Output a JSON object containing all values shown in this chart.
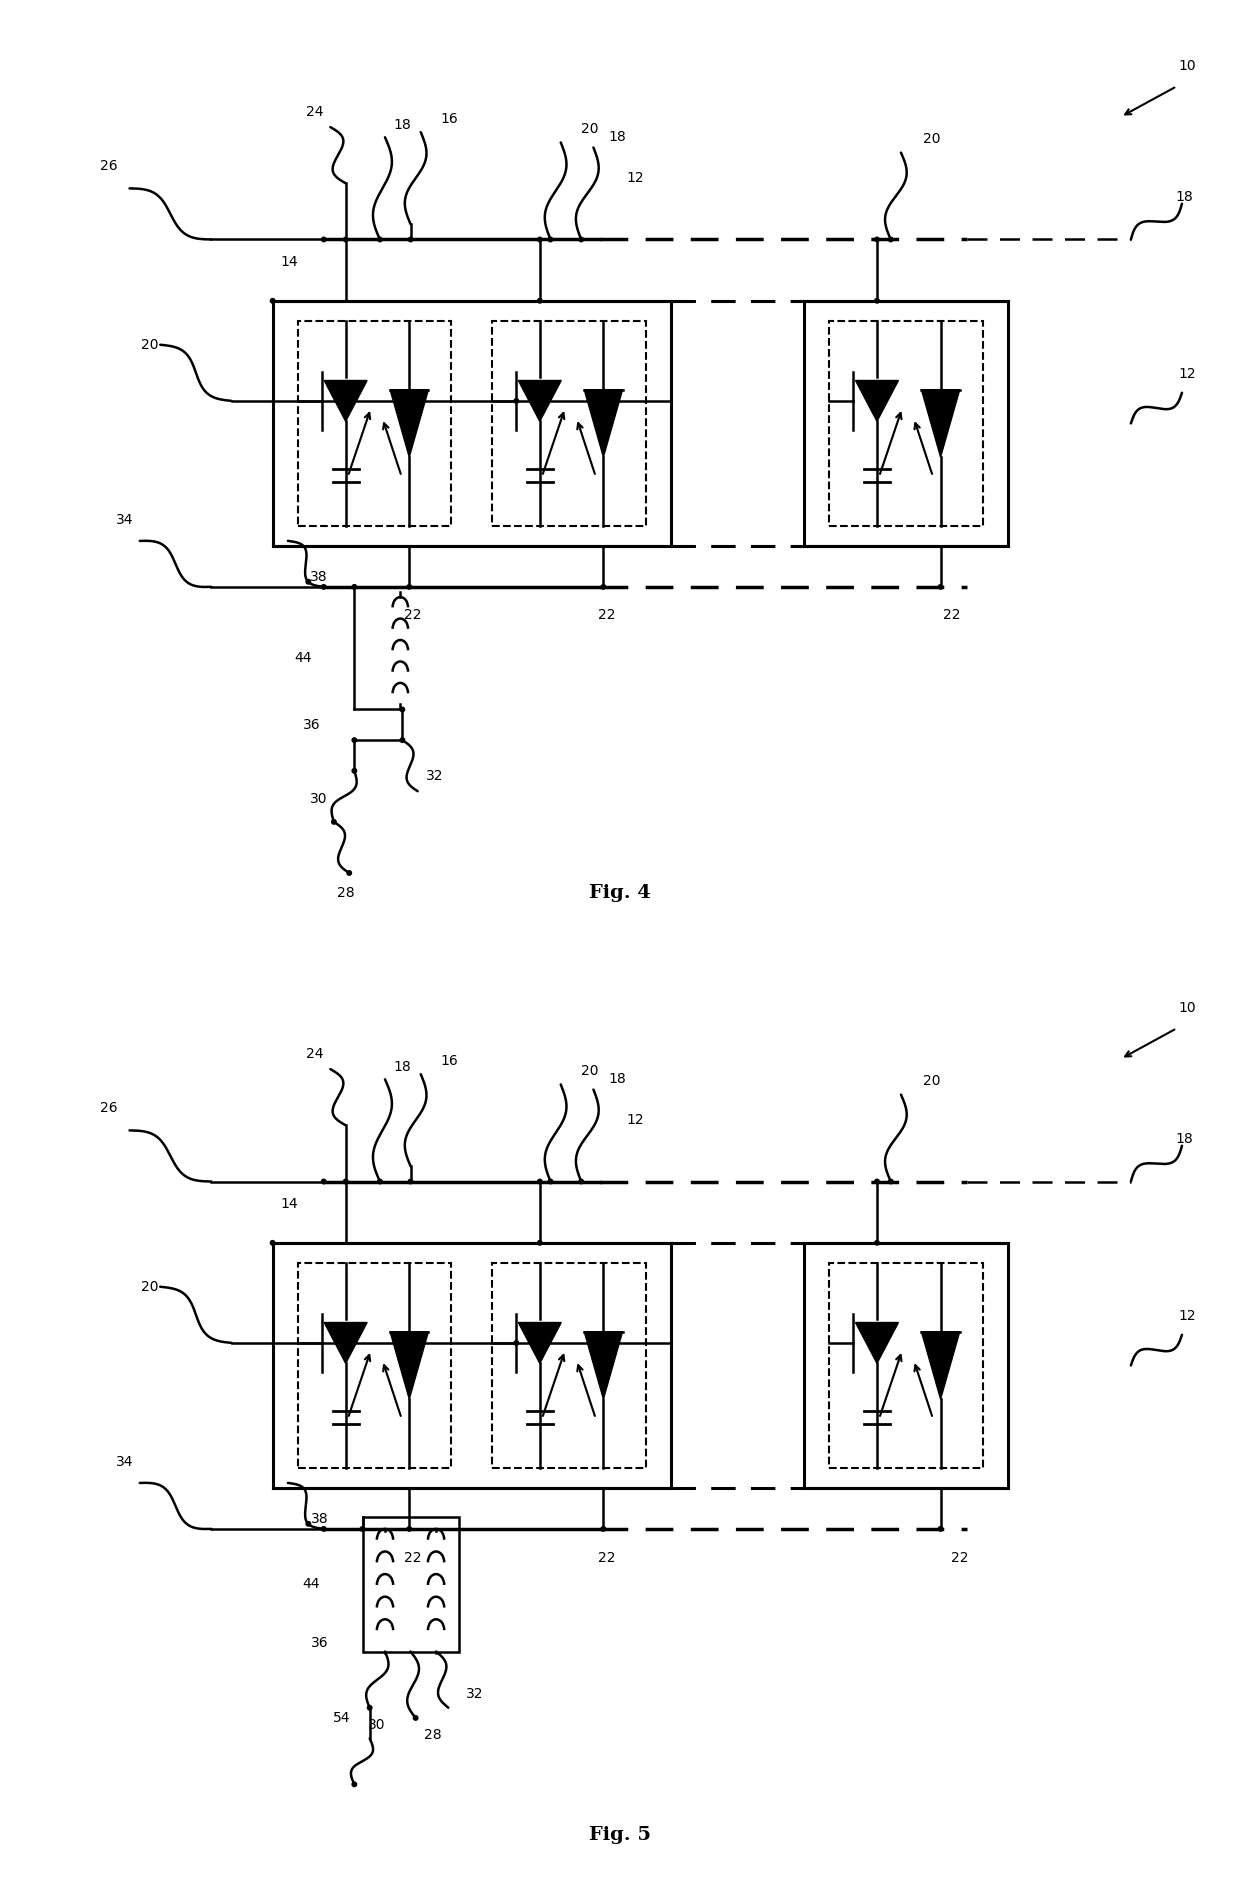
{
  "background_color": "#ffffff",
  "line_color": "#000000",
  "lw": 1.8,
  "lw_thick": 2.2,
  "fs": 10,
  "fs_fig": 14,
  "fig4_title": "Fig. 4",
  "fig5_title": "Fig. 5"
}
